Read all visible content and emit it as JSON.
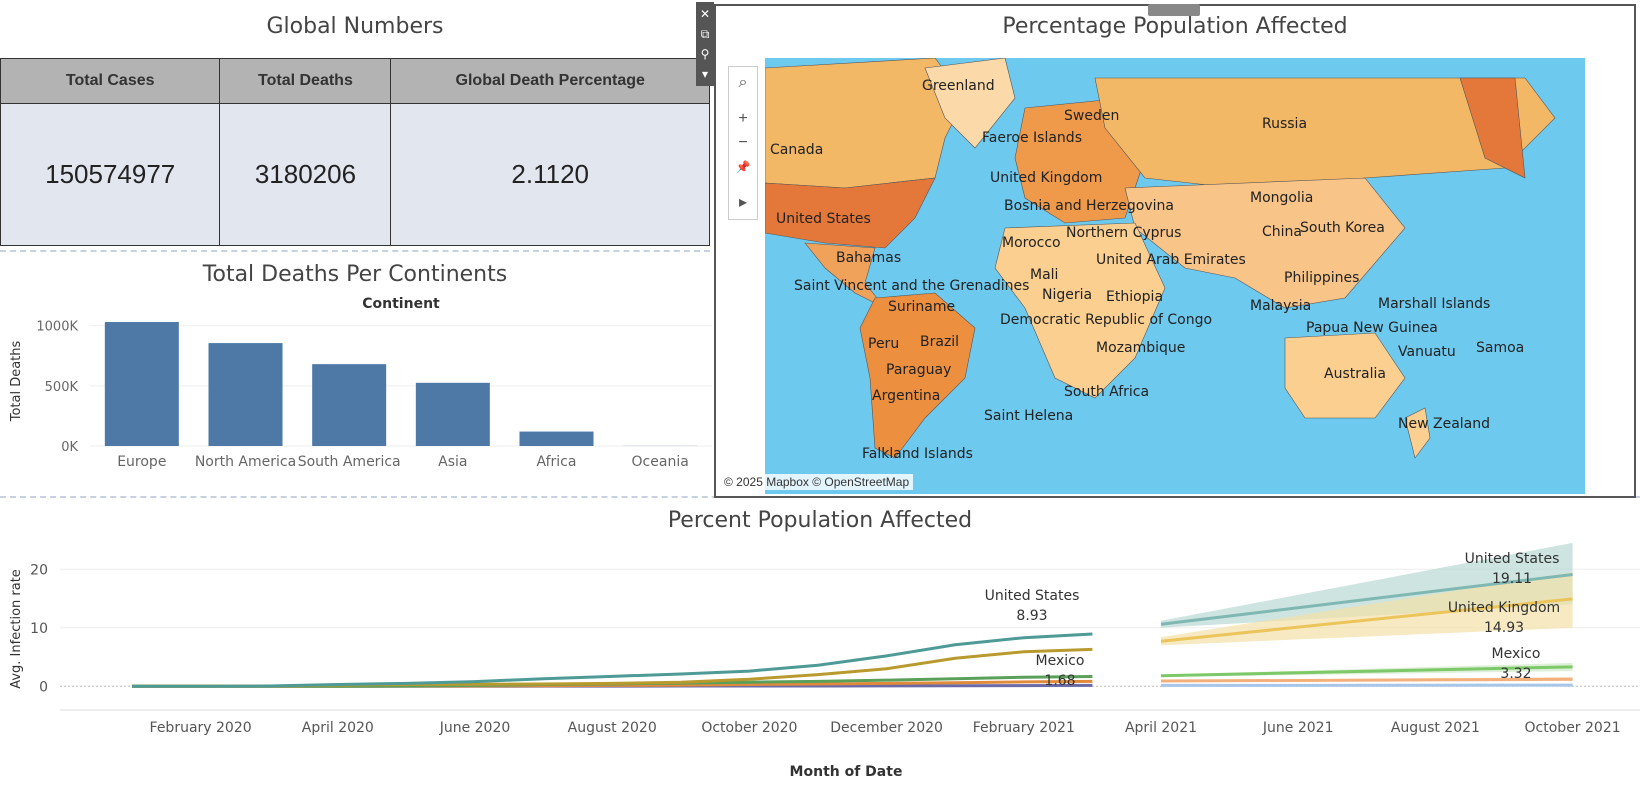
{
  "global_numbers": {
    "title": "Global Numbers",
    "columns": [
      "Total Cases",
      "Total Deaths",
      "Global Death Percentage"
    ],
    "values": [
      "150574977",
      "3180206",
      "2.1120"
    ]
  },
  "deaths_per_continent": {
    "title": "Total Deaths Per Continents"
  },
  "map": {
    "title": "Percentage Population Affected",
    "attribution": "© 2025 Mapbox © OpenStreetMap",
    "labels": [
      "Greenland",
      "Sweden",
      "Faeroe Islands",
      "Russia",
      "Canada",
      "United Kingdom",
      "Bosnia and Herzegovina",
      "Mongolia",
      "United States",
      "Northern Cyprus",
      "China",
      "South Korea",
      "Morocco",
      "Bahamas",
      "United Arab Emirates",
      "Mali",
      "Saint Vincent and the Grenadines",
      "Philippines",
      "Nigeria",
      "Ethiopia",
      "Suriname",
      "Malaysia",
      "Marshall Islands",
      "Democratic Republic of Congo",
      "Papua New Guinea",
      "Peru",
      "Brazil",
      "Vanuatu",
      "Samoa",
      "Mozambique",
      "Paraguay",
      "Australia",
      "Argentina",
      "South Africa",
      "Saint Helena",
      "New Zealand",
      "Falkland Islands"
    ],
    "toolbar": {
      "search_icon": "⌕",
      "zoom_in": "+",
      "zoom_out": "−",
      "pin_icon": "📌",
      "play_icon": "▸"
    }
  },
  "float_toolbar": {
    "close": "✕",
    "popout": "⧉",
    "filter": "⚲",
    "more": "▾"
  },
  "chart_data": [
    {
      "type": "bar",
      "title": "Total Deaths Per Continents",
      "header": "Continent",
      "ylabel": "Total Deaths",
      "categories": [
        "Europe",
        "North America",
        "South America",
        "Asia",
        "Africa",
        "Oceania"
      ],
      "values": [
        1030000,
        855000,
        680000,
        525000,
        120000,
        1000
      ],
      "ylim": [
        0,
        1080000
      ],
      "yticks": [
        {
          "v": 0,
          "label": "0K"
        },
        {
          "v": 500000,
          "label": "500K"
        },
        {
          "v": 1000000,
          "label": "1000K"
        }
      ],
      "color": "#4e79a7"
    },
    {
      "type": "line",
      "title": "Percent Population Affected",
      "xlabel": "Month of Date",
      "ylabel": "Avg. Infection rate",
      "ylim": [
        -2,
        25
      ],
      "yticks": [
        0,
        10,
        20
      ],
      "xticks": [
        "February 2020",
        "April 2020",
        "June 2020",
        "August 2020",
        "October 2020",
        "December 2020",
        "February 2021",
        "April 2021",
        "June 2021",
        "August 2021",
        "October 2021"
      ],
      "series": [
        {
          "name": "United States",
          "color": "#4e9a96",
          "x": [
            "2020-01",
            "2020-02",
            "2020-03",
            "2020-04",
            "2020-05",
            "2020-06",
            "2020-07",
            "2020-08",
            "2020-09",
            "2020-10",
            "2020-11",
            "2020-12",
            "2021-01",
            "2021-02",
            "2021-03"
          ],
          "values": [
            0,
            0,
            0.05,
            0.3,
            0.5,
            0.8,
            1.3,
            1.7,
            2.1,
            2.6,
            3.6,
            5.2,
            7.1,
            8.3,
            8.93
          ]
        },
        {
          "name": "United Kingdom",
          "color": "#b89a2e",
          "x": [
            "2020-01",
            "2020-02",
            "2020-03",
            "2020-04",
            "2020-05",
            "2020-06",
            "2020-07",
            "2020-08",
            "2020-09",
            "2020-10",
            "2020-11",
            "2020-12",
            "2021-01",
            "2021-02",
            "2021-03"
          ],
          "values": [
            0,
            0,
            0.03,
            0.2,
            0.3,
            0.35,
            0.4,
            0.5,
            0.7,
            1.2,
            2.0,
            3.0,
            4.8,
            5.9,
            6.3
          ]
        },
        {
          "name": "Mexico",
          "color": "#5aa05a",
          "x": [
            "2020-01",
            "2020-02",
            "2020-03",
            "2020-04",
            "2020-05",
            "2020-06",
            "2020-07",
            "2020-08",
            "2020-09",
            "2020-10",
            "2020-11",
            "2020-12",
            "2021-01",
            "2021-02",
            "2021-03"
          ],
          "values": [
            0,
            0,
            0,
            0.01,
            0.05,
            0.15,
            0.3,
            0.4,
            0.55,
            0.7,
            0.85,
            1.05,
            1.3,
            1.55,
            1.68
          ]
        },
        {
          "name": "",
          "color": "#e08a3c",
          "x": [
            "2020-01",
            "2020-02",
            "2020-03",
            "2020-04",
            "2020-05",
            "2020-06",
            "2020-07",
            "2020-08",
            "2020-09",
            "2020-10",
            "2020-11",
            "2020-12",
            "2021-01",
            "2021-02",
            "2021-03"
          ],
          "values": [
            0,
            0,
            0,
            0.01,
            0.03,
            0.06,
            0.1,
            0.15,
            0.2,
            0.3,
            0.4,
            0.5,
            0.6,
            0.75,
            0.85
          ]
        },
        {
          "name": "",
          "color": "#6a6aa8",
          "x": [
            "2020-01",
            "2020-02",
            "2020-03",
            "2020-04",
            "2020-05",
            "2020-06",
            "2020-07",
            "2020-08",
            "2020-09",
            "2020-10",
            "2020-11",
            "2020-12",
            "2021-01",
            "2021-02",
            "2021-03"
          ],
          "values": [
            0,
            0,
            0,
            0,
            0,
            0.01,
            0.02,
            0.03,
            0.04,
            0.05,
            0.06,
            0.08,
            0.1,
            0.12,
            0.15
          ]
        }
      ],
      "forecast": [
        {
          "name": "United States",
          "color": "#7fb8b2",
          "band": "#b9d8d3",
          "start": 10.6,
          "end": 19.11,
          "band_start": [
            10.0,
            11.2
          ],
          "band_end": [
            14.0,
            24.5
          ]
        },
        {
          "name": "United Kingdom",
          "color": "#ebc55a",
          "band": "#f3e1a8",
          "start": 7.7,
          "end": 14.93,
          "band_start": [
            7.0,
            8.4
          ],
          "band_end": [
            10.0,
            19.5
          ]
        },
        {
          "name": "Mexico",
          "color": "#7dc96a",
          "band": "#cfe9c6",
          "start": 1.8,
          "end": 3.32,
          "band_start": [
            1.6,
            2.0
          ],
          "band_end": [
            2.6,
            4.0
          ]
        },
        {
          "name": "",
          "color": "#f3b07a",
          "band": "#f8dcc4",
          "start": 0.9,
          "end": 1.2,
          "band_start": [
            0.8,
            1.0
          ],
          "band_end": [
            0.9,
            1.6
          ]
        },
        {
          "name": "",
          "color": "#a7c6e8",
          "band": "#dbe7f3",
          "start": 0.15,
          "end": 0.2,
          "band_start": [
            0.1,
            0.2
          ],
          "band_end": [
            0.1,
            0.3
          ]
        }
      ],
      "annotations": [
        {
          "label": "United States",
          "value": "8.93"
        },
        {
          "label": "Mexico",
          "value": "1.68"
        },
        {
          "label": "United States",
          "value": "19.11"
        },
        {
          "label": "United Kingdom",
          "value": "14.93"
        },
        {
          "label": "Mexico",
          "value": "3.32"
        }
      ]
    }
  ]
}
